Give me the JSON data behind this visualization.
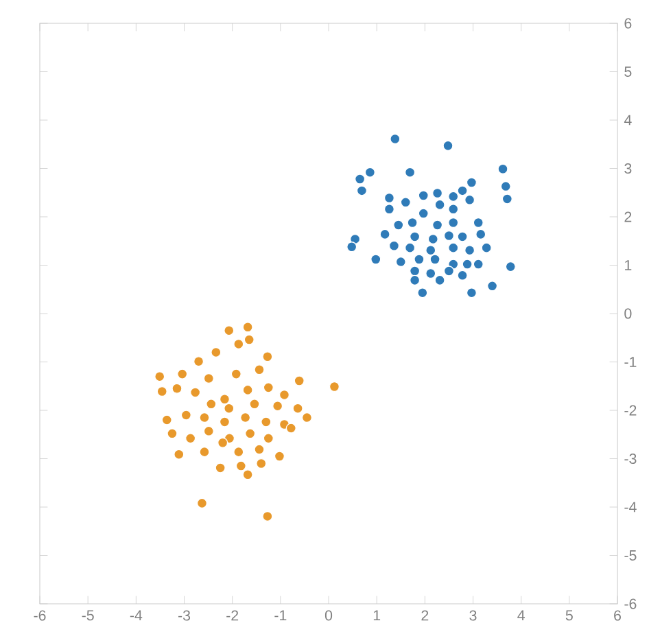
{
  "chart_data": {
    "type": "scatter",
    "xlim": [
      -6,
      6
    ],
    "ylim": [
      -6,
      6
    ],
    "xticks": [
      -6,
      -5,
      -4,
      -3,
      -2,
      -1,
      0,
      1,
      2,
      3,
      4,
      5,
      6
    ],
    "yticks": [
      -6,
      -5,
      -4,
      -3,
      -2,
      -1,
      0,
      1,
      2,
      3,
      4,
      5,
      6
    ],
    "grid": false,
    "series": [
      {
        "color": "#2f7bb8",
        "x": [
          1.38,
          2.48,
          0.86,
          0.65,
          1.69,
          3.62,
          0.69,
          3.68,
          3.71,
          2.97,
          2.78,
          2.26,
          2.59,
          1.97,
          1.26,
          1.6,
          1.26,
          1.97,
          2.31,
          2.59,
          2.93,
          1.74,
          1.45,
          2.26,
          2.59,
          3.11,
          1.17,
          1.79,
          2.17,
          2.5,
          2.78,
          3.16,
          0.55,
          0.48,
          1.36,
          1.69,
          2.12,
          2.59,
          2.93,
          3.28,
          0.98,
          1.5,
          1.88,
          2.21,
          2.59,
          2.88,
          3.11,
          3.78,
          1.79,
          2.12,
          2.5,
          2.78,
          1.79,
          2.31,
          1.95,
          2.97,
          3.4
        ],
        "values": [
          3.61,
          3.47,
          2.92,
          2.78,
          2.92,
          2.99,
          2.54,
          2.63,
          2.37,
          2.71,
          2.54,
          2.49,
          2.42,
          2.44,
          2.39,
          2.3,
          2.16,
          2.07,
          2.25,
          2.16,
          2.35,
          1.88,
          1.83,
          1.83,
          1.88,
          1.88,
          1.64,
          1.59,
          1.54,
          1.61,
          1.59,
          1.64,
          1.54,
          1.38,
          1.4,
          1.36,
          1.31,
          1.36,
          1.31,
          1.36,
          1.12,
          1.07,
          1.12,
          1.12,
          1.02,
          1.02,
          1.02,
          0.97,
          0.88,
          0.83,
          0.88,
          0.79,
          0.69,
          0.69,
          0.43,
          0.43,
          0.57
        ]
      },
      {
        "color": "#e8992c",
        "x": [
          -2.07,
          -1.68,
          -1.87,
          -1.65,
          -2.34,
          -2.7,
          -1.27,
          -3.51,
          -3.04,
          -2.49,
          -1.92,
          -1.44,
          -0.61,
          0.12,
          -3.46,
          -3.15,
          -2.77,
          -2.16,
          -1.68,
          -1.25,
          -0.92,
          -2.44,
          -2.07,
          -1.54,
          -1.06,
          -0.64,
          -3.36,
          -2.96,
          -2.58,
          -2.16,
          -1.73,
          -1.3,
          -0.92,
          -0.45,
          -3.25,
          -2.87,
          -2.49,
          -2.06,
          -1.63,
          -1.25,
          -0.78,
          -3.11,
          -2.58,
          -2.2,
          -1.87,
          -1.44,
          -1.02,
          -2.25,
          -1.82,
          -1.4,
          -1.68,
          -2.63,
          -1.27
        ],
        "values": [
          -0.35,
          -0.28,
          -0.63,
          -0.54,
          -0.8,
          -0.99,
          -0.89,
          -1.3,
          -1.25,
          -1.34,
          -1.25,
          -1.16,
          -1.39,
          -1.51,
          -1.61,
          -1.55,
          -1.63,
          -1.77,
          -1.58,
          -1.53,
          -1.68,
          -1.87,
          -1.96,
          -1.87,
          -1.91,
          -1.96,
          -2.2,
          -2.1,
          -2.15,
          -2.24,
          -2.15,
          -2.24,
          -2.29,
          -2.15,
          -2.48,
          -2.58,
          -2.43,
          -2.58,
          -2.48,
          -2.58,
          -2.37,
          -2.91,
          -2.86,
          -2.67,
          -2.86,
          -2.81,
          -2.95,
          -3.19,
          -3.15,
          -3.1,
          -3.33,
          -3.92,
          -4.19
        ]
      }
    ]
  }
}
